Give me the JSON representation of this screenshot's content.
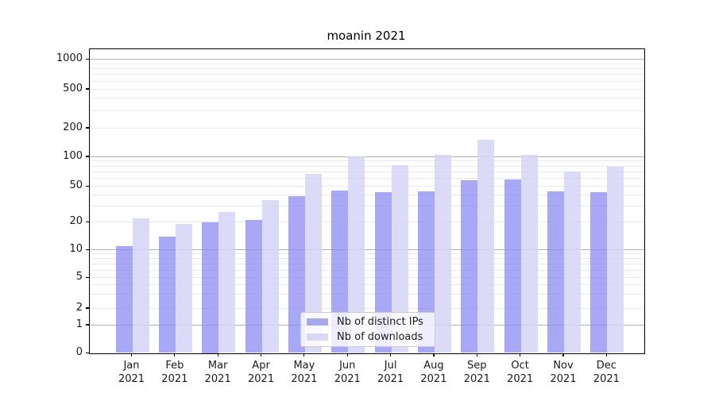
{
  "title": "moanin 2021",
  "legend": {
    "items": [
      {
        "label": "Nb of distinct IPs",
        "color": "#a8a8ec"
      },
      {
        "label": "Nb of downloads",
        "color": "#d9d9f6"
      }
    ],
    "position": "lower center"
  },
  "colors": {
    "bar_distinct_ips": "rgba(134,134,244,0.72)",
    "bar_downloads": "rgba(213,213,246,0.85)",
    "major_grid": "#b0b0b0",
    "minor_grid": "#e9e9e9",
    "axis": "#000000"
  },
  "y_axis": {
    "tick_labels": [
      "0",
      "1",
      "2",
      "5",
      "10",
      "20",
      "50",
      "100",
      "200",
      "500",
      "1000"
    ],
    "tick_values": [
      0,
      1,
      2,
      5,
      10,
      20,
      50,
      100,
      200,
      500,
      1000
    ],
    "scale": "log-like with linear 0–1 segment"
  },
  "x_axis": {
    "months": [
      {
        "month": "Jan",
        "year": "2021"
      },
      {
        "month": "Feb",
        "year": "2021"
      },
      {
        "month": "Mar",
        "year": "2021"
      },
      {
        "month": "Apr",
        "year": "2021"
      },
      {
        "month": "May",
        "year": "2021"
      },
      {
        "month": "Jun",
        "year": "2021"
      },
      {
        "month": "Jul",
        "year": "2021"
      },
      {
        "month": "Aug",
        "year": "2021"
      },
      {
        "month": "Sep",
        "year": "2021"
      },
      {
        "month": "Oct",
        "year": "2021"
      },
      {
        "month": "Nov",
        "year": "2021"
      },
      {
        "month": "Dec",
        "year": "2021"
      }
    ]
  },
  "chart_data": {
    "type": "bar",
    "title": "moanin 2021",
    "categories": [
      "Jan 2021",
      "Feb 2021",
      "Mar 2021",
      "Apr 2021",
      "May 2021",
      "Jun 2021",
      "Jul 2021",
      "Aug 2021",
      "Sep 2021",
      "Oct 2021",
      "Nov 2021",
      "Dec 2021"
    ],
    "series": [
      {
        "name": "Nb of distinct IPs",
        "color": "#a8a8ec",
        "values": [
          11,
          14,
          20,
          21,
          39,
          45,
          43,
          44,
          57,
          58,
          44,
          43
        ]
      },
      {
        "name": "Nb of downloads",
        "color": "#d9d9f6",
        "values": [
          22,
          19,
          26,
          35,
          67,
          100,
          82,
          103,
          150,
          103,
          70,
          78
        ]
      }
    ],
    "xlabel": "",
    "ylabel": "",
    "ylim": [
      0,
      1000
    ],
    "yticks": [
      0,
      1,
      2,
      5,
      10,
      20,
      50,
      100,
      200,
      500,
      1000
    ],
    "grid": "horizontal: major gray lines at 1,10,100,1000; faint minor lines at 2-9 per decade",
    "legend_position": "lower center inside plot"
  }
}
